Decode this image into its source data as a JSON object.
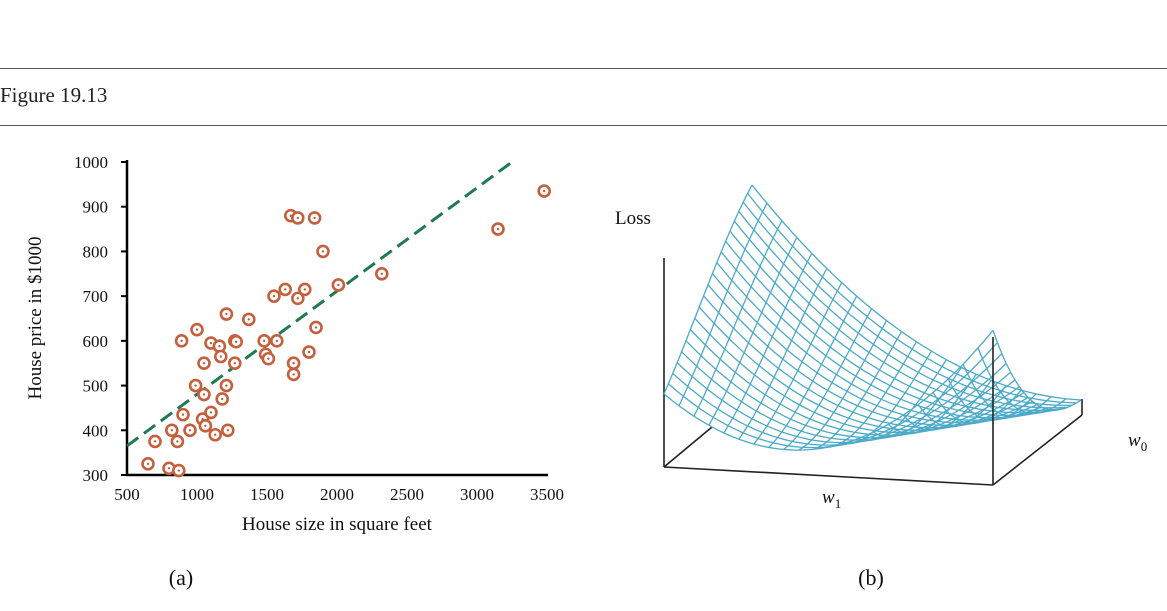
{
  "figure_title": "Figure 19.13",
  "chart_data": [
    {
      "type": "scatter",
      "panel_label": "(a)",
      "xlabel": "House size in square feet",
      "ylabel": "House price in $1000",
      "xlim": [
        500,
        3500
      ],
      "ylim": [
        300,
        1000
      ],
      "xticks": [
        "500",
        "1000",
        "1500",
        "2000",
        "2500",
        "3000",
        "3500"
      ],
      "yticks": [
        "300",
        "400",
        "500",
        "600",
        "700",
        "800",
        "900",
        "1000"
      ],
      "point_color": "#c4603d",
      "line_color": "#1f7a4f",
      "fit_line": {
        "style": "dashed",
        "x": [
          500,
          3250
        ],
        "y": [
          365,
          1000
        ]
      },
      "points": [
        [
          1670,
          880
        ],
        [
          1720,
          875
        ],
        [
          1840,
          875
        ],
        [
          1900,
          800
        ],
        [
          1770,
          715
        ],
        [
          1630,
          715
        ],
        [
          1550,
          700
        ],
        [
          1720,
          695
        ],
        [
          2010,
          725
        ],
        [
          2320,
          750
        ],
        [
          3150,
          850
        ],
        [
          3480,
          935
        ],
        [
          1370,
          648
        ],
        [
          1210,
          660
        ],
        [
          1000,
          625
        ],
        [
          890,
          600
        ],
        [
          1100,
          595
        ],
        [
          1160,
          588
        ],
        [
          1270,
          600
        ],
        [
          1280,
          598
        ],
        [
          1480,
          600
        ],
        [
          1570,
          600
        ],
        [
          1490,
          570
        ],
        [
          1510,
          560
        ],
        [
          1850,
          630
        ],
        [
          1800,
          575
        ],
        [
          1690,
          550
        ],
        [
          1690,
          525
        ],
        [
          1270,
          550
        ],
        [
          1050,
          550
        ],
        [
          1170,
          565
        ],
        [
          990,
          500
        ],
        [
          1210,
          500
        ],
        [
          1050,
          480
        ],
        [
          1180,
          470
        ],
        [
          900,
          435
        ],
        [
          1040,
          425
        ],
        [
          1100,
          440
        ],
        [
          1060,
          410
        ],
        [
          950,
          400
        ],
        [
          1130,
          390
        ],
        [
          1220,
          400
        ],
        [
          820,
          400
        ],
        [
          860,
          375
        ],
        [
          700,
          375
        ],
        [
          650,
          325
        ],
        [
          800,
          315
        ],
        [
          870,
          310
        ]
      ]
    },
    {
      "type": "surface",
      "panel_label": "(b)",
      "zlabel": "Loss",
      "xlabel": "w",
      "xlabel_sub": "1",
      "ylabel": "w",
      "ylabel_sub": "0",
      "mesh_color": "#4aaac8"
    }
  ]
}
